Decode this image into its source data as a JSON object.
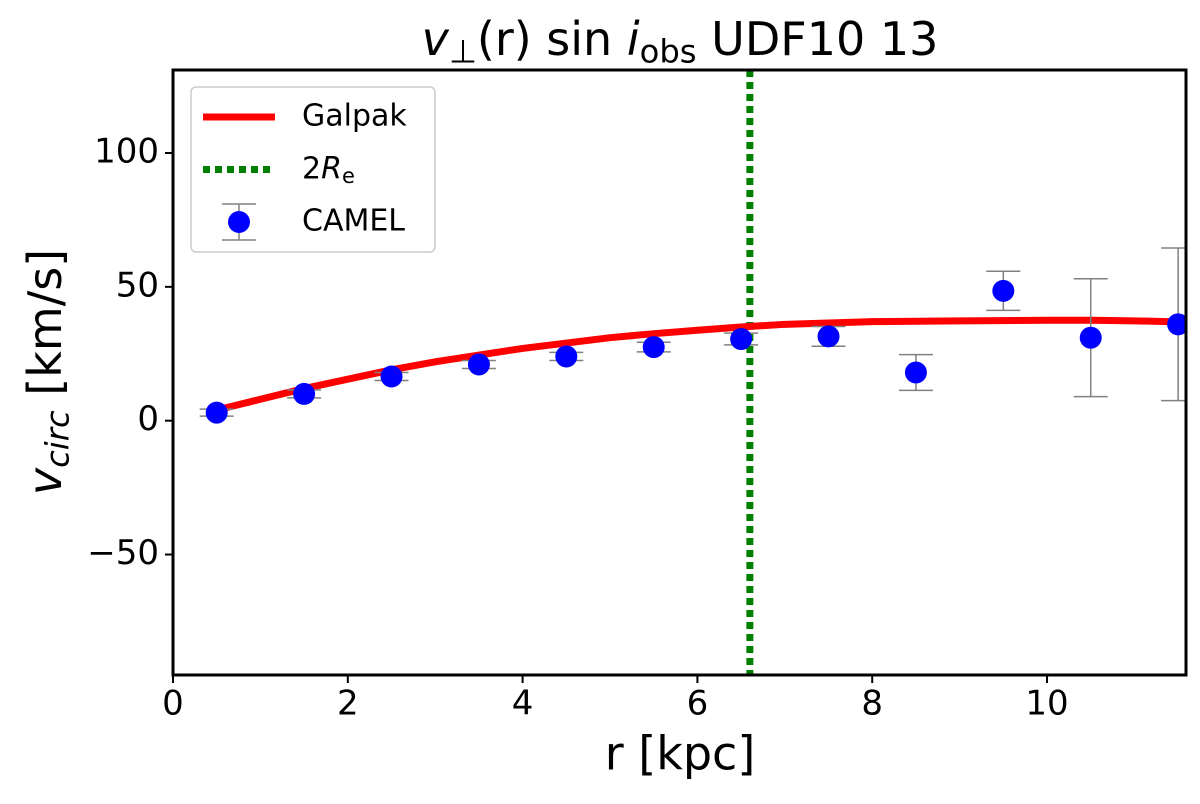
{
  "chart_data": {
    "type": "errorbar",
    "title": [
      "v",
      "⊥",
      "(r)",
      " sin ",
      "i",
      "obs",
      " UDF10 13"
    ],
    "xlabel": "r [kpc]",
    "ylabel": [
      "v",
      "circ",
      " [km/s]"
    ],
    "xlim": [
      0,
      11.59
    ],
    "ylim": [
      -95,
      131
    ],
    "xticks": [
      0,
      2,
      4,
      6,
      8,
      10
    ],
    "yticks": [
      {
        "value": -50,
        "label": "−50"
      },
      0,
      50,
      100
    ],
    "legend": "upper left",
    "series": [
      {
        "name": "Galpak",
        "kind": "line",
        "color": "#ff0000",
        "x": [
          0.5,
          1,
          1.5,
          2,
          2.5,
          3,
          3.5,
          4,
          4.5,
          5,
          5.5,
          6,
          6.5,
          7,
          7.5,
          8,
          9,
          10,
          10.5,
          11,
          11.59
        ],
        "values": [
          4,
          8,
          12,
          15.5,
          19,
          22,
          24.5,
          27,
          29,
          31,
          32.5,
          33.8,
          35,
          36,
          36.5,
          37,
          37.3,
          37.5,
          37.5,
          37.3,
          36.8
        ]
      },
      {
        "name": "CAMEL",
        "kind": "errorbar",
        "color": "#0000ff",
        "ecolor": "#808080",
        "x": [
          0.5,
          1.5,
          2.5,
          3.5,
          4.5,
          5.5,
          6.5,
          7.5,
          8.5,
          9.5,
          10.5,
          11.5
        ],
        "values": [
          3,
          10,
          16.5,
          21,
          24,
          27.5,
          30.5,
          31.5,
          18,
          48.5,
          31,
          36
        ],
        "errors": [
          1.3,
          1.5,
          1.5,
          1.5,
          1.5,
          1.8,
          2.2,
          3.7,
          6.7,
          7.3,
          22,
          28.5
        ]
      }
    ],
    "vlines": [
      {
        "name": [
          "2",
          "R",
          "e"
        ],
        "x": 6.6,
        "color": "#008000"
      }
    ]
  }
}
